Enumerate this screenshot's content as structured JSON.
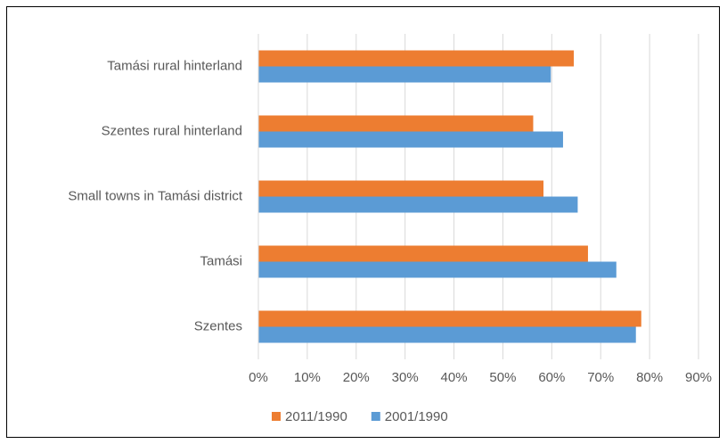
{
  "chart_data": {
    "type": "bar",
    "orientation": "horizontal",
    "categories": [
      "Szentes",
      "Tamási",
      "Small towns in Tamási district",
      "Szentes rural hinterland",
      "Tamási rural hinterland"
    ],
    "series": [
      {
        "name": "2011/1990",
        "color": "#ed7d31",
        "values": [
          78.3,
          67.4,
          58.3,
          56.2,
          64.5
        ]
      },
      {
        "name": "2001/1990",
        "color": "#5b9bd5",
        "values": [
          77.2,
          73.2,
          65.3,
          62.3,
          59.8
        ]
      }
    ],
    "xlim": [
      0,
      90
    ],
    "xticks": [
      {
        "value": 0,
        "label": "0%"
      },
      {
        "value": 10,
        "label": "10%"
      },
      {
        "value": 20,
        "label": "20%"
      },
      {
        "value": 30,
        "label": "30%"
      },
      {
        "value": 40,
        "label": "40%"
      },
      {
        "value": 50,
        "label": "50%"
      },
      {
        "value": 60,
        "label": "60%"
      },
      {
        "value": 70,
        "label": "70%"
      },
      {
        "value": 80,
        "label": "80%"
      },
      {
        "value": 90,
        "label": "90%"
      }
    ],
    "grid": true,
    "legend": "bottom"
  }
}
